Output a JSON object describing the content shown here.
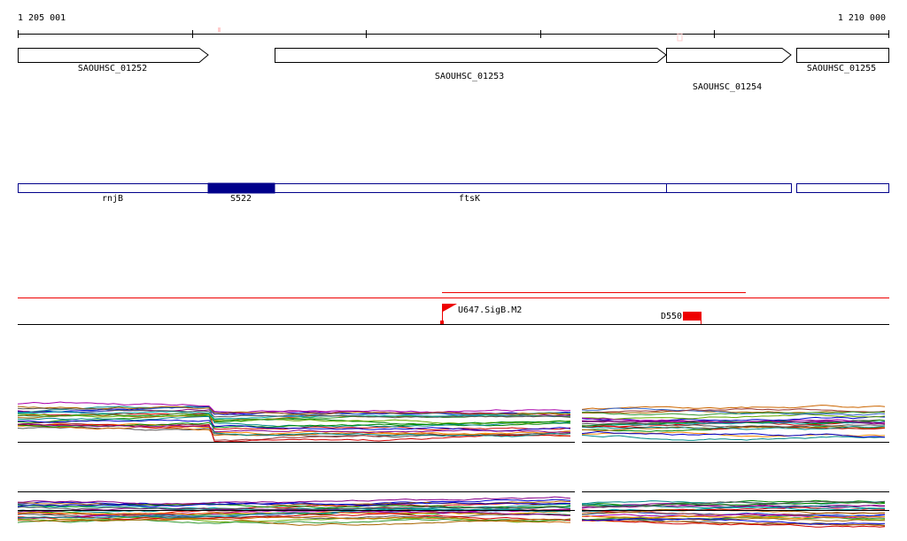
{
  "ruler": {
    "start": "1 205 001",
    "end": "1 210 000"
  },
  "genes": [
    {
      "label": "SAOUHSC_01252"
    },
    {
      "label": "SAOUHSC_01253"
    },
    {
      "label": "SAOUHSC_01254"
    },
    {
      "label": "SAOUHSC_01255"
    }
  ],
  "transcripts": [
    {
      "label": "rnjB"
    },
    {
      "label": "S522"
    },
    {
      "label": "ftsK"
    }
  ],
  "features": [
    {
      "label": "U647.SigB.M2"
    },
    {
      "label": "D550"
    }
  ]
}
